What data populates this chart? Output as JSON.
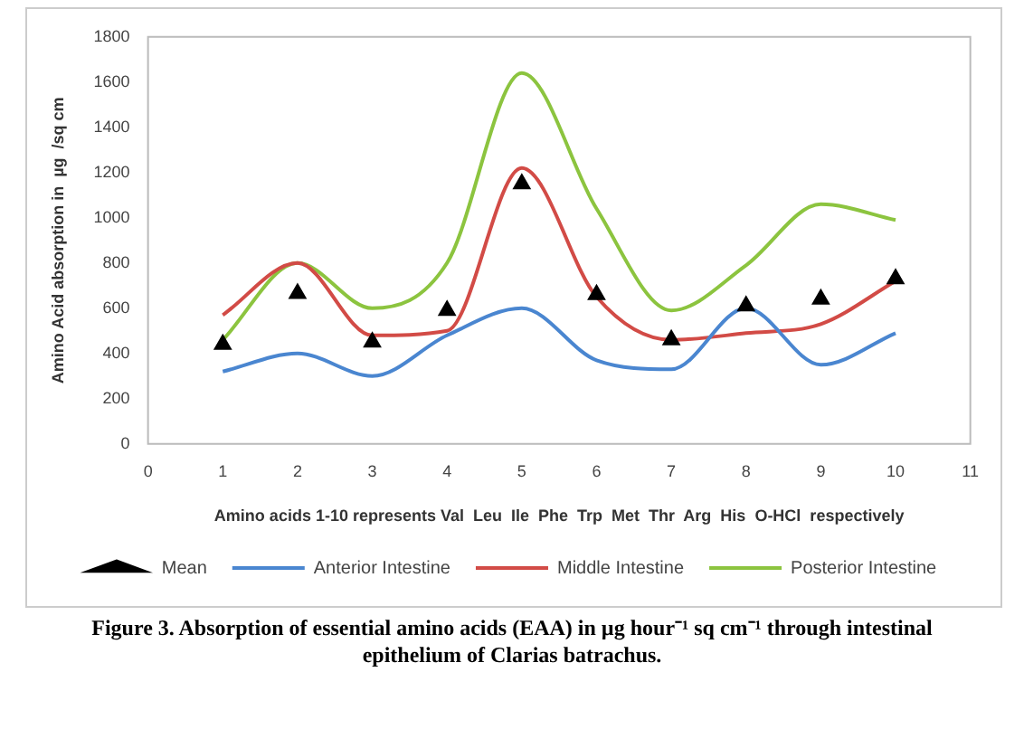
{
  "chart_data": {
    "type": "line",
    "xlabel": "Amino acids 1-10 represents Val  Leu  Ile  Phe  Trp  Met  Thr  Arg  His  O-HCl  respectively",
    "ylabel": "Amino Acid absorption in  µg  /sq cm",
    "annotations": [
      "Figure 3. Absorption of essential amino acids (EAA) in µg hour⁻¹ sq cm⁻¹ through intestinal epithelium of Clarias batrachus."
    ],
    "x": [
      1,
      2,
      3,
      4,
      5,
      6,
      7,
      8,
      9,
      10
    ],
    "xlim": [
      0,
      11
    ],
    "xticks": [
      0,
      1,
      2,
      3,
      4,
      5,
      6,
      7,
      8,
      9,
      10,
      11
    ],
    "ylim": [
      0,
      1800
    ],
    "yticks": [
      0,
      200,
      400,
      600,
      800,
      1000,
      1200,
      1400,
      1600,
      1800
    ],
    "grid": false,
    "legend": "bottom",
    "line_style": "solid",
    "series": [
      {
        "name": "Mean",
        "type": "scatter",
        "marker": "triangle",
        "color": "#000000",
        "values": [
          440,
          665,
          450,
          590,
          1150,
          660,
          460,
          610,
          640,
          730
        ]
      },
      {
        "name": "Anterior Intestine",
        "color": "#4a86d0",
        "values": [
          320,
          400,
          300,
          480,
          600,
          370,
          330,
          600,
          350,
          490
        ]
      },
      {
        "name": "Middle Intestine",
        "color": "#d24b46",
        "values": [
          570,
          800,
          480,
          500,
          1220,
          650,
          460,
          490,
          530,
          720
        ]
      },
      {
        "name": "Posterior Intestine",
        "color": "#8cc43f",
        "values": [
          460,
          800,
          600,
          800,
          1640,
          1040,
          590,
          790,
          1060,
          990
        ]
      }
    ]
  }
}
